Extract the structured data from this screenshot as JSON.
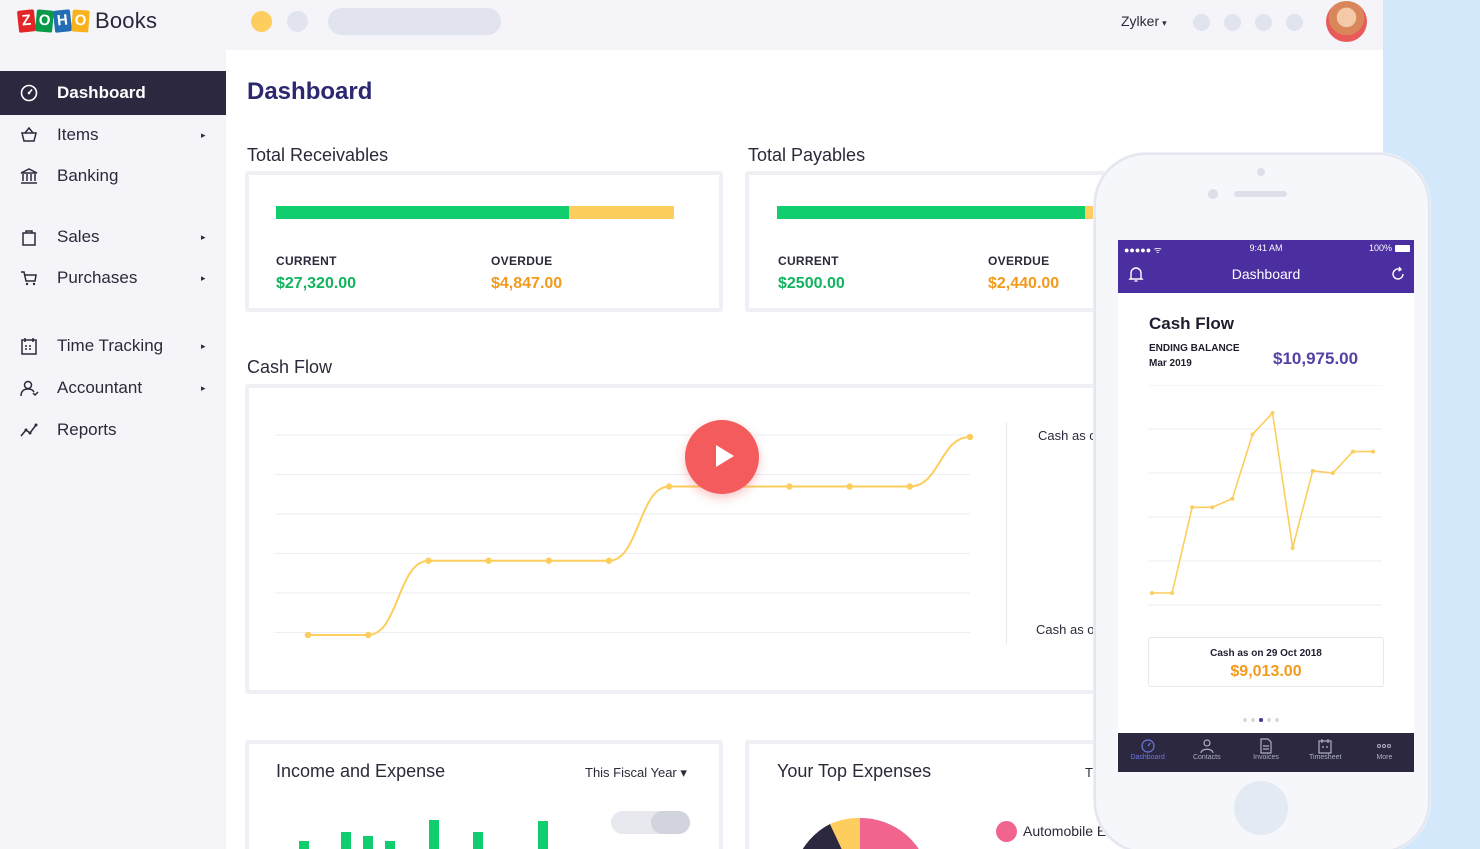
{
  "app": {
    "logo_letters": [
      "Z",
      "O",
      "H",
      "O"
    ],
    "logo_colors": [
      "#e42527",
      "#089949",
      "#226db4",
      "#f9b21d"
    ],
    "product": "Books",
    "accent_yellow": "#fdce5d"
  },
  "header": {
    "org_name": "Zylker",
    "org_caret": "▾"
  },
  "sidebar": {
    "items": [
      {
        "label": "Dashboard",
        "icon": "dashboard-gauge-icon",
        "active": true,
        "has_submenu": false
      },
      {
        "label": "Items",
        "icon": "basket-icon",
        "has_submenu": true
      },
      {
        "label": "Banking",
        "icon": "bank-icon",
        "has_submenu": false
      },
      {
        "label": "Sales",
        "icon": "shopping-bag-icon",
        "has_submenu": true
      },
      {
        "label": "Purchases",
        "icon": "cart-icon",
        "has_submenu": true
      },
      {
        "label": "Time Tracking",
        "icon": "calendar-icon",
        "has_submenu": true
      },
      {
        "label": "Accountant",
        "icon": "user-icon",
        "has_submenu": true
      },
      {
        "label": "Reports",
        "icon": "trend-line-icon",
        "has_submenu": false
      }
    ],
    "submenu_caret": "▸"
  },
  "main": {
    "title": "Dashboard",
    "receivables": {
      "title": "Total Receivables",
      "current_label": "CURRENT",
      "current_value": "$27,320.00",
      "overdue_label": "OVERDUE",
      "overdue_value": "$4,847.00",
      "current_share": 0.735
    },
    "payables": {
      "title": "Total Payables",
      "current_label": "CURRENT",
      "current_value": "$2500.00",
      "overdue_label": "OVERDUE",
      "overdue_value": "$2,440.00",
      "current_share": 0.84
    },
    "cash_flow": {
      "title": "Cash Flow",
      "legend_top": "Cash as o",
      "legend_bottom": "Cash as o"
    },
    "income_expense": {
      "title": "Income and Expense",
      "period": "This Fiscal Year",
      "period_caret": "▾"
    },
    "top_expenses": {
      "title": "Your Top Expenses",
      "truncated_label": "T",
      "legend_first": "Automobile E"
    }
  },
  "phone": {
    "status_signal": "●●●●● ᯤ",
    "status_time": "9:41 AM",
    "status_battery": "100%",
    "app_title": "Dashboard",
    "card_title": "Cash Flow",
    "ending_balance_label": "ENDING BALANCE",
    "ending_balance_date": "Mar 2019",
    "ending_balance_value": "$10,975.00",
    "cash_as_on_label": "Cash as on  29 Oct 2018",
    "cash_as_on_value": "$9,013.00",
    "tabs": [
      "Dashboard",
      "Contacts",
      "Invoices",
      "Timesheet",
      "More"
    ]
  },
  "chart_data": [
    {
      "type": "line",
      "title": "Cash Flow",
      "series": [
        {
          "values": [
            1,
            1,
            4,
            4,
            4,
            4,
            7,
            7,
            7,
            7,
            7,
            9
          ]
        }
      ],
      "xlabel": "",
      "ylabel": "",
      "grid": true
    },
    {
      "type": "line",
      "title": "Cash Flow",
      "series": [
        {
          "values": [
            1,
            1,
            5,
            5,
            5.4,
            8.4,
            9.4,
            3.1,
            6.7,
            6.6,
            7.6,
            7.6
          ]
        }
      ],
      "xlabel": "",
      "ylabel": "",
      "grid": true
    }
  ]
}
